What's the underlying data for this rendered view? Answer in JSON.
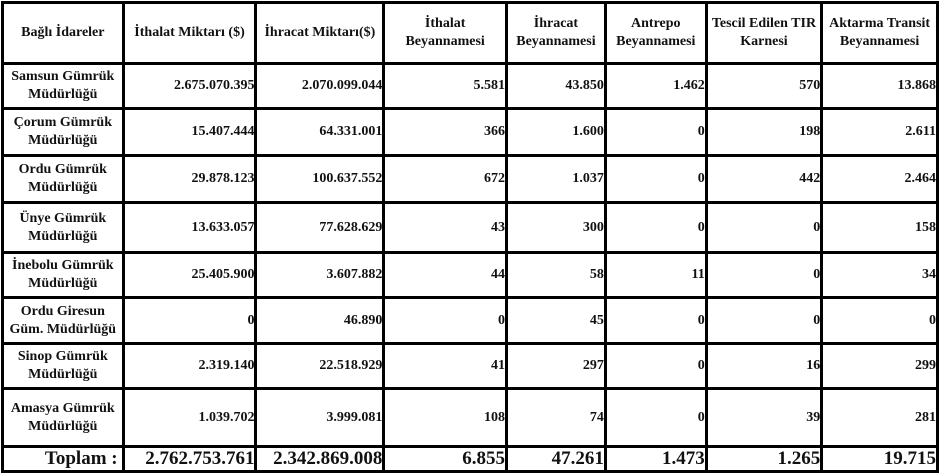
{
  "table": {
    "headers": [
      "Bağlı İdareler",
      "İthalat Miktarı ($)",
      "İhracat Miktarı($)",
      "İthalat Beyannamesi",
      "İhracat Beyannamesi",
      "Antrepo Beyannamesi",
      "Tescil Edilen TIR Karnesi",
      "Aktarma Transit Beyannamesi"
    ],
    "rows": [
      [
        "Samsun Gümrük Müdürlüğü",
        "2.675.070.395",
        "2.070.099.044",
        "5.581",
        "43.850",
        "1.462",
        "570",
        "13.868"
      ],
      [
        "Çorum Gümrük Müdürlüğü",
        "15.407.444",
        "64.331.001",
        "366",
        "1.600",
        "0",
        "198",
        "2.611"
      ],
      [
        "Ordu Gümrük Müdürlüğü",
        "29.878.123",
        "100.637.552",
        "672",
        "1.037",
        "0",
        "442",
        "2.464"
      ],
      [
        "Ünye Gümrük Müdürlüğü",
        "13.633.057",
        "77.628.629",
        "43",
        "300",
        "0",
        "0",
        "158"
      ],
      [
        "İnebolu Gümrük Müdürlüğü",
        "25.405.900",
        "3.607.882",
        "44",
        "58",
        "11",
        "0",
        "34"
      ],
      [
        "Ordu Giresun Güm. Müdürlüğü",
        "0",
        "46.890",
        "0",
        "45",
        "0",
        "0",
        "0"
      ],
      [
        "Sinop Gümrük Müdürlüğü",
        "2.319.140",
        "22.518.929",
        "41",
        "297",
        "0",
        "16",
        "299"
      ],
      [
        "Amasya Gümrük Müdürlüğü",
        "1.039.702",
        "3.999.081",
        "108",
        "74",
        "0",
        "39",
        "281"
      ]
    ],
    "total": [
      "Toplam :",
      "2.762.753.761",
      "2.342.869.008",
      "6.855",
      "47.261",
      "1.473",
      "1.265",
      "19.715"
    ]
  }
}
